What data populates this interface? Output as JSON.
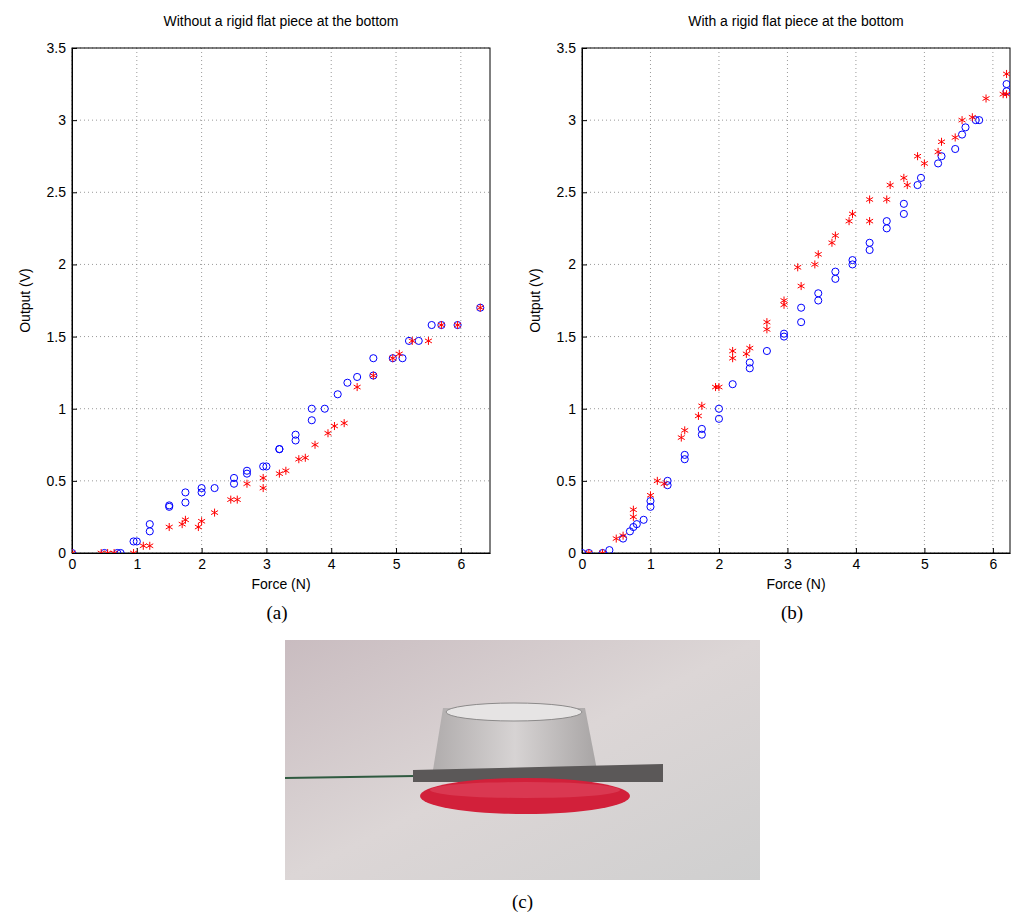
{
  "chart_data": [
    {
      "type": "scatter",
      "title": "Without a rigid flat piece at the bottom",
      "xlabel": "Force (N)",
      "ylabel": "Output (V)",
      "xlim": [
        0,
        6.45
      ],
      "ylim": [
        0,
        3.5
      ],
      "xticks": [
        0,
        1,
        2,
        3,
        4,
        5,
        6
      ],
      "yticks": [
        0,
        0.5,
        1,
        1.5,
        2,
        2.5,
        3,
        3.5
      ],
      "grid": true,
      "series": [
        {
          "color": "#0000ff",
          "marker": "circle",
          "x": [
            0,
            0.5,
            0.7,
            0.75,
            0.95,
            1.0,
            1.2,
            1.2,
            1.5,
            1.5,
            1.75,
            1.75,
            2.0,
            2.0,
            2.2,
            2.5,
            2.5,
            2.7,
            2.7,
            2.95,
            3.0,
            3.2,
            3.2,
            3.45,
            3.45,
            3.7,
            3.7,
            3.9,
            4.1,
            4.25,
            4.4,
            4.65,
            4.65,
            4.95,
            5.1,
            5.2,
            5.35,
            5.55,
            5.7,
            5.95,
            6.3
          ],
          "values": [
            0,
            0,
            0,
            0,
            0.08,
            0.08,
            0.2,
            0.15,
            0.33,
            0.32,
            0.35,
            0.42,
            0.42,
            0.45,
            0.45,
            0.48,
            0.52,
            0.55,
            0.57,
            0.6,
            0.6,
            0.72,
            0.72,
            0.78,
            0.82,
            0.92,
            1.0,
            1.0,
            1.1,
            1.18,
            1.22,
            1.35,
            1.23,
            1.35,
            1.35,
            1.47,
            1.47,
            1.58,
            1.58,
            1.58,
            1.7
          ]
        },
        {
          "color": "#ff0000",
          "marker": "asterisk",
          "x": [
            0,
            0.45,
            0.55,
            0.65,
            0.95,
            1.1,
            1.2,
            1.5,
            1.7,
            1.75,
            1.95,
            2.0,
            2.2,
            2.45,
            2.55,
            2.7,
            2.95,
            2.95,
            3.2,
            3.3,
            3.5,
            3.6,
            3.75,
            3.95,
            4.05,
            4.2,
            4.4,
            4.65,
            4.95,
            5.05,
            5.25,
            5.5,
            5.7,
            5.95,
            6.3
          ],
          "values": [
            0,
            0,
            0,
            0,
            0,
            0.05,
            0.05,
            0.18,
            0.2,
            0.23,
            0.18,
            0.22,
            0.28,
            0.37,
            0.37,
            0.48,
            0.45,
            0.52,
            0.55,
            0.57,
            0.65,
            0.66,
            0.75,
            0.83,
            0.88,
            0.9,
            1.15,
            1.23,
            1.35,
            1.38,
            1.47,
            1.47,
            1.58,
            1.58,
            1.7
          ]
        }
      ]
    },
    {
      "type": "scatter",
      "title": "With a rigid flat piece at the bottom",
      "xlabel": "Force (N)",
      "ylabel": "Output (V)",
      "xlim": [
        0,
        6.25
      ],
      "ylim": [
        0,
        3.5
      ],
      "xticks": [
        0,
        1,
        2,
        3,
        4,
        5,
        6
      ],
      "yticks": [
        0,
        0.5,
        1,
        1.5,
        2,
        2.5,
        3,
        3.5
      ],
      "grid": true,
      "series": [
        {
          "color": "#0000ff",
          "marker": "circle",
          "x": [
            0,
            0.1,
            0.3,
            0.4,
            0.6,
            0.7,
            0.75,
            0.8,
            0.9,
            1.0,
            1.0,
            1.25,
            1.25,
            1.5,
            1.5,
            1.75,
            1.75,
            2.0,
            2.0,
            2.2,
            2.45,
            2.45,
            2.7,
            2.95,
            2.95,
            3.2,
            3.2,
            3.45,
            3.45,
            3.7,
            3.7,
            3.95,
            3.95,
            4.2,
            4.2,
            4.45,
            4.45,
            4.7,
            4.7,
            4.9,
            4.95,
            5.2,
            5.25,
            5.45,
            5.55,
            5.6,
            5.75,
            5.8,
            6.2,
            6.2
          ],
          "values": [
            0,
            0,
            0,
            0.02,
            0.1,
            0.15,
            0.18,
            0.2,
            0.23,
            0.32,
            0.36,
            0.47,
            0.5,
            0.65,
            0.68,
            0.82,
            0.86,
            0.93,
            1.0,
            1.17,
            1.28,
            1.32,
            1.4,
            1.5,
            1.52,
            1.6,
            1.7,
            1.75,
            1.8,
            1.9,
            1.95,
            2.0,
            2.03,
            2.1,
            2.15,
            2.25,
            2.3,
            2.35,
            2.42,
            2.55,
            2.6,
            2.7,
            2.75,
            2.8,
            2.9,
            2.95,
            3.0,
            3.0,
            3.2,
            3.25
          ]
        },
        {
          "color": "#ff0000",
          "marker": "asterisk",
          "x": [
            0.1,
            0.3,
            0.5,
            0.6,
            0.75,
            0.75,
            1.0,
            1.1,
            1.2,
            1.45,
            1.5,
            1.7,
            1.75,
            1.95,
            2.0,
            2.2,
            2.2,
            2.4,
            2.45,
            2.7,
            2.7,
            2.95,
            2.95,
            3.15,
            3.2,
            3.4,
            3.45,
            3.65,
            3.7,
            3.9,
            3.95,
            4.2,
            4.2,
            4.45,
            4.5,
            4.7,
            4.75,
            4.9,
            5.0,
            5.2,
            5.25,
            5.45,
            5.55,
            5.7,
            5.9,
            6.15,
            6.2,
            6.2
          ],
          "values": [
            0,
            0,
            0.1,
            0.12,
            0.25,
            0.3,
            0.4,
            0.5,
            0.48,
            0.8,
            0.85,
            0.95,
            1.02,
            1.15,
            1.15,
            1.35,
            1.4,
            1.38,
            1.42,
            1.55,
            1.6,
            1.72,
            1.75,
            1.98,
            1.85,
            2.0,
            2.07,
            2.15,
            2.2,
            2.3,
            2.35,
            2.45,
            2.3,
            2.45,
            2.55,
            2.6,
            2.55,
            2.75,
            2.7,
            2.78,
            2.85,
            2.88,
            3.0,
            3.02,
            3.15,
            3.18,
            3.32,
            3.18
          ]
        }
      ]
    }
  ],
  "captions": [
    "(a)",
    "(b)",
    "(c)"
  ]
}
